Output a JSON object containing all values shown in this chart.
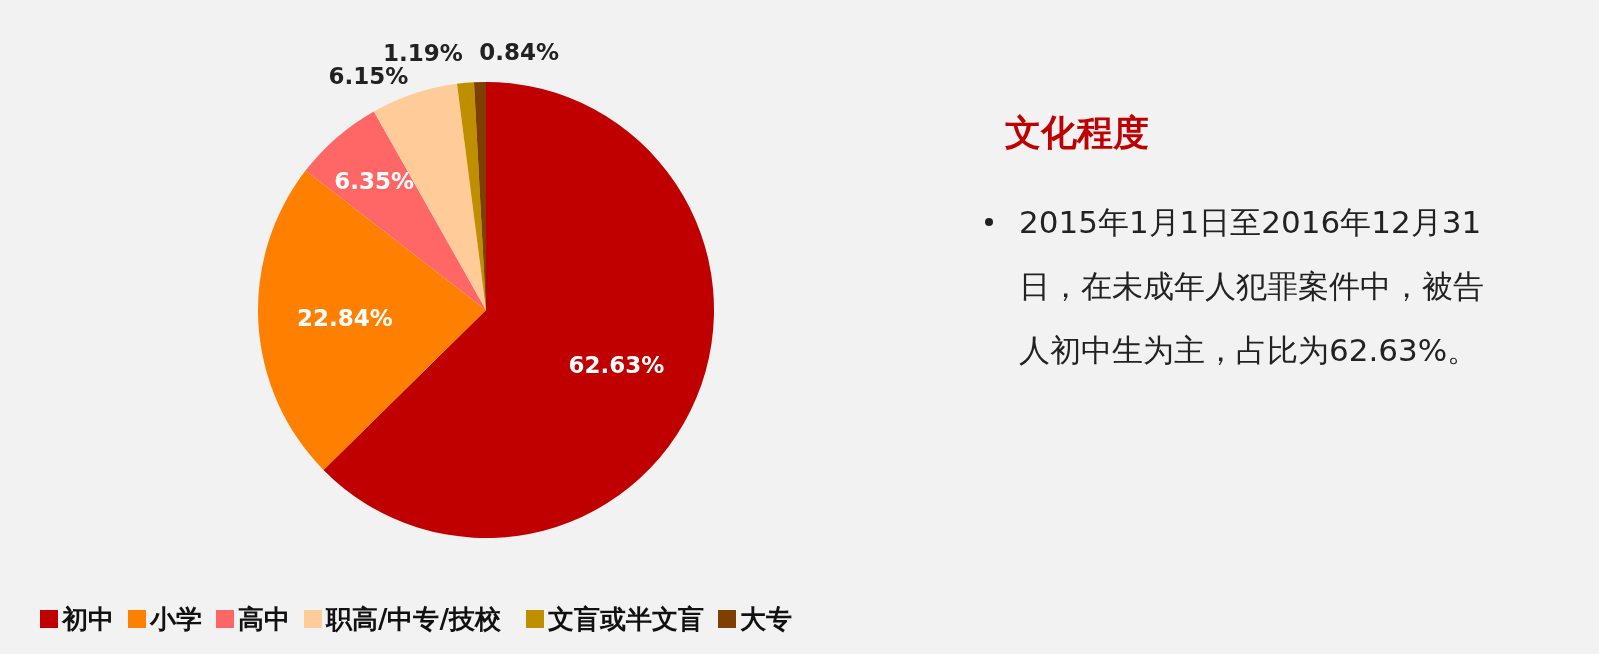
{
  "chart_data": {
    "type": "pie",
    "title": "文化程度",
    "categories": [
      "初中",
      "小学",
      "高中",
      "职高/中专/技校",
      "文盲或半文盲",
      "大专"
    ],
    "values": [
      62.63,
      22.84,
      6.35,
      6.15,
      1.19,
      0.84
    ],
    "colors": [
      "#c00000",
      "#ff8000",
      "#ff6666",
      "#ffcc99",
      "#bf8f00",
      "#7f3f00"
    ],
    "value_labels": [
      "62.63%",
      "22.84%",
      "6.35%",
      "6.15%",
      "1.19%",
      "0.84%"
    ],
    "legend": "bottom",
    "annotations": [
      "2015年1月1日至2016年12月31日，在未成年人犯罪案件中，被告人初中生为主，占比为62.63%。"
    ]
  }
}
